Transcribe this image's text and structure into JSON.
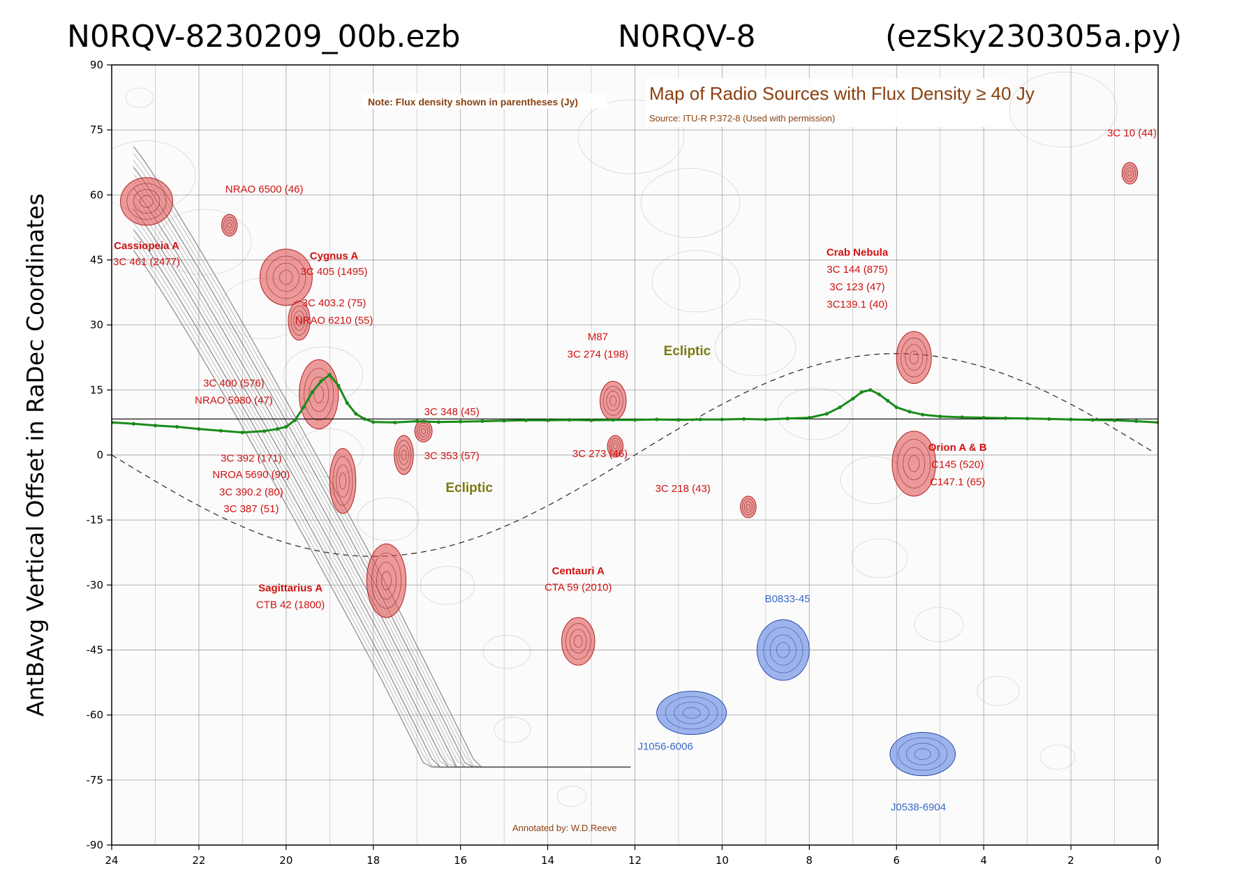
{
  "title": {
    "left": "N0RQV-8230209_00b.ezb",
    "center": "N0RQV-8",
    "right": "(ezSky230305a.py)"
  },
  "chart_data": {
    "type": "line",
    "title": "N0RQV-8230209_00b.ezb        N0RQV-8        (ezSky230305a.py)",
    "ylabel": "AntBAvg Vertical Offset in RaDec Coordinates",
    "xlabel": "",
    "xlim": [
      24,
      0
    ],
    "ylim": [
      -90,
      90
    ],
    "x_reversed": true,
    "xticks": [
      24,
      22,
      20,
      18,
      16,
      14,
      12,
      10,
      8,
      6,
      4,
      2,
      0
    ],
    "yticks": [
      90,
      75,
      60,
      45,
      30,
      15,
      0,
      -15,
      -30,
      -45,
      -60,
      -75,
      -90
    ],
    "horizontal_line_y": 8.3,
    "series": [
      {
        "color": "#1a8a1a",
        "x": [
          24,
          23.5,
          23,
          22.5,
          22,
          21.5,
          21,
          20.5,
          20.2,
          20,
          19.8,
          19.6,
          19.4,
          19.2,
          19.0,
          18.8,
          18.6,
          18.4,
          18.2,
          18.0,
          17.5,
          17,
          16.5,
          16,
          15.5,
          15,
          14.5,
          14,
          13.5,
          13,
          12.5,
          12,
          11.5,
          11,
          10.5,
          10,
          9.5,
          9,
          8.5,
          8,
          7.6,
          7.3,
          7.0,
          6.8,
          6.6,
          6.4,
          6.2,
          6.0,
          5.7,
          5.4,
          5.0,
          4.5,
          4,
          3.5,
          3,
          2.5,
          2,
          1.5,
          1,
          0.5,
          0
        ],
        "y": [
          7.5,
          7.2,
          6.8,
          6.5,
          6.0,
          5.6,
          5.2,
          5.5,
          6.0,
          6.5,
          8.0,
          11.0,
          14.5,
          17.0,
          18.5,
          16.0,
          12.0,
          9.5,
          8.3,
          7.6,
          7.5,
          7.8,
          7.6,
          7.7,
          7.8,
          7.9,
          8.0,
          8.0,
          8.1,
          8.0,
          8.1,
          8.1,
          8.2,
          8.1,
          8.2,
          8.2,
          8.3,
          8.2,
          8.4,
          8.6,
          9.5,
          11.0,
          13.0,
          14.5,
          15.0,
          14.0,
          12.5,
          11.0,
          10.0,
          9.3,
          8.9,
          8.7,
          8.6,
          8.5,
          8.4,
          8.3,
          8.2,
          8.1,
          8.0,
          7.8,
          7.5
        ]
      }
    ],
    "background_map": {
      "title": "Map of Radio Sources with Flux Density ≥ 40 Jy",
      "source": "Source: ITU-R P.372-8 (Used with permission)",
      "note": "Note: Flux density shown in parentheses (Jy)",
      "annotated_by": "Annotated by: W.D.Reeve",
      "ecliptic_label": "Ecliptic",
      "red_sources": [
        {
          "x": 23.2,
          "y": 58.5,
          "rx": 0.6,
          "ry": 5.5
        },
        {
          "x": 21.3,
          "y": 53,
          "rx": 0.18,
          "ry": 2.5
        },
        {
          "x": 20.0,
          "y": 41,
          "rx": 0.6,
          "ry": 6.5
        },
        {
          "x": 19.7,
          "y": 31,
          "rx": 0.25,
          "ry": 4.5
        },
        {
          "x": 19.25,
          "y": 14,
          "rx": 0.45,
          "ry": 8
        },
        {
          "x": 18.7,
          "y": -6,
          "rx": 0.3,
          "ry": 7.5
        },
        {
          "x": 17.7,
          "y": -29,
          "rx": 0.45,
          "ry": 8.5
        },
        {
          "x": 17.3,
          "y": 0,
          "rx": 0.22,
          "ry": 4.5
        },
        {
          "x": 16.85,
          "y": 5.5,
          "rx": 0.2,
          "ry": 2.5
        },
        {
          "x": 13.3,
          "y": -43,
          "rx": 0.38,
          "ry": 5.5
        },
        {
          "x": 12.5,
          "y": 12.5,
          "rx": 0.3,
          "ry": 4.5
        },
        {
          "x": 12.45,
          "y": 2,
          "rx": 0.18,
          "ry": 2.5
        },
        {
          "x": 9.4,
          "y": -12,
          "rx": 0.18,
          "ry": 2.5
        },
        {
          "x": 5.6,
          "y": 22.5,
          "rx": 0.4,
          "ry": 6
        },
        {
          "x": 5.6,
          "y": -2,
          "rx": 0.5,
          "ry": 7.5
        },
        {
          "x": 0.65,
          "y": 65,
          "rx": 0.18,
          "ry": 2.5
        }
      ],
      "blue_sources": [
        {
          "x": 10.7,
          "y": -59.5,
          "rx": 0.8,
          "ry": 5
        },
        {
          "x": 8.6,
          "y": -45,
          "rx": 0.6,
          "ry": 7
        },
        {
          "x": 5.4,
          "y": -69,
          "rx": 0.75,
          "ry": 5
        }
      ],
      "labels": [
        {
          "x": 23.2,
          "y": 47.5,
          "text": "Cassiopeia A",
          "bold": true
        },
        {
          "x": 23.2,
          "y": 43.8,
          "text": "3C 461 (2477)"
        },
        {
          "x": 20.5,
          "y": 60.5,
          "text": "NRAO 6500 (46)"
        },
        {
          "x": 18.9,
          "y": 45.2,
          "text": "Cygnus A",
          "bold": true
        },
        {
          "x": 18.9,
          "y": 41.5,
          "text": "3C 405 (1495)"
        },
        {
          "x": 18.9,
          "y": 34.3,
          "text": "3C 403.2 (75)"
        },
        {
          "x": 18.9,
          "y": 30.3,
          "text": "NRAO 6210 (55)"
        },
        {
          "x": 21.2,
          "y": 15.8,
          "text": "3C 400 (576)"
        },
        {
          "x": 21.2,
          "y": 11.8,
          "text": "NRAO 5980 (47)"
        },
        {
          "x": 16.2,
          "y": 9.2,
          "text": "3C 348 (45)"
        },
        {
          "x": 16.2,
          "y": -1,
          "text": "3C 353 (57)"
        },
        {
          "x": 20.8,
          "y": -1.5,
          "text": "3C 392 (171)"
        },
        {
          "x": 20.8,
          "y": -5.3,
          "text": "NROA 5690 (90)"
        },
        {
          "x": 20.8,
          "y": -9.3,
          "text": "3C 390.2 (80)"
        },
        {
          "x": 20.8,
          "y": -13.2,
          "text": "3C 387  (51)"
        },
        {
          "x": 19.9,
          "y": -31.5,
          "text": "Sagittarius A",
          "bold": true
        },
        {
          "x": 19.9,
          "y": -35.3,
          "text": "CTB 42 (1800)"
        },
        {
          "x": 13.3,
          "y": -27.5,
          "text": "Centauri A",
          "bold": true
        },
        {
          "x": 13.3,
          "y": -31.3,
          "text": "CTA 59 (2010)"
        },
        {
          "x": 12.85,
          "y": 26.5,
          "text": "M87"
        },
        {
          "x": 12.85,
          "y": 22.5,
          "text": "3C 274 (198)"
        },
        {
          "x": 12.8,
          "y": -0.5,
          "text": "3C 273 (46)"
        },
        {
          "x": 10.9,
          "y": -8.5,
          "text": "3C 218 (43)"
        },
        {
          "x": 6.9,
          "y": 46,
          "text": "Crab Nebula",
          "bold": true
        },
        {
          "x": 6.9,
          "y": 42,
          "text": "3C 144 (875)"
        },
        {
          "x": 6.9,
          "y": 38,
          "text": "3C 123 (47)"
        },
        {
          "x": 6.9,
          "y": 34,
          "text": "3C139.1 (40)"
        },
        {
          "x": 4.6,
          "y": 1,
          "text": "Orion A & B",
          "bold": true
        },
        {
          "x": 4.6,
          "y": -3,
          "text": "C145 (520)"
        },
        {
          "x": 4.6,
          "y": -7,
          "text": "C147.1 (65)"
        },
        {
          "x": 0.6,
          "y": 73.5,
          "text": "3C 10 (44)"
        }
      ],
      "blue_labels": [
        {
          "x": 8.5,
          "y": -34,
          "text": "B0833-45"
        },
        {
          "x": 11.3,
          "y": -68,
          "text": "J1056-6006"
        },
        {
          "x": 5.5,
          "y": -82,
          "text": "J0538-6904"
        }
      ],
      "ecliptic_labels": [
        {
          "x": 10.8,
          "y": 23,
          "text": "Ecliptic"
        },
        {
          "x": 15.8,
          "y": -8.5,
          "text": "Ecliptic"
        }
      ]
    }
  },
  "colors": {
    "red_source": "#e04848",
    "blue_source": "#5078e0",
    "data_line": "#1a8a1a",
    "horizontal_line": "#000000"
  }
}
